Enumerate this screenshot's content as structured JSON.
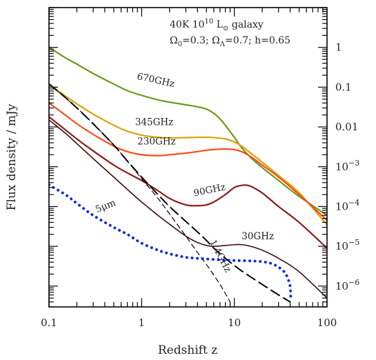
{
  "chart_data": {
    "type": "line",
    "xlabel": "Redshift z",
    "ylabel": "Flux density / mJy",
    "xscale": "log",
    "yscale": "log",
    "xlim": [
      0.1,
      100
    ],
    "ylim": [
      3e-07,
      10
    ],
    "grid": false,
    "legend": "none",
    "x_tick_labels": [
      "0.1",
      "1",
      "10",
      "100"
    ],
    "y_tick_labels": [
      {
        "value": 1,
        "base": "1",
        "exp": ""
      },
      {
        "value": 0.1,
        "base": "0.1",
        "exp": ""
      },
      {
        "value": 0.01,
        "base": "0.01",
        "exp": ""
      },
      {
        "value": 0.001,
        "base": "10",
        "exp": "−3"
      },
      {
        "value": 0.0001,
        "base": "10",
        "exp": "−4"
      },
      {
        "value": 1e-05,
        "base": "10",
        "exp": "−5"
      },
      {
        "value": 1e-06,
        "base": "10",
        "exp": "−6"
      }
    ],
    "annotations": {
      "line1": {
        "prefix": "40K 10",
        "exp": "10",
        "mid": " L",
        "sub": "⊙",
        "suffix": " galaxy"
      },
      "line2": {
        "o": "Ω",
        "osub": "0",
        "oval": "=0.3; ",
        "l": "Ω",
        "lsub": "Λ",
        "lval": "=0.7; h=0.65"
      }
    },
    "series": [
      {
        "name": "670GHz",
        "color": "#6a9a1a",
        "dash": "solid",
        "width": 2.2,
        "label": {
          "x": 0.88,
          "y": 0.16,
          "rotate": 12
        },
        "x": [
          0.1,
          0.15,
          0.2,
          0.3,
          0.5,
          0.7,
          1,
          1.5,
          2,
          3,
          4,
          5,
          6,
          7,
          8,
          10,
          12,
          15,
          20,
          30,
          50,
          100
        ],
        "y": [
          1.0,
          0.55,
          0.38,
          0.22,
          0.12,
          0.082,
          0.062,
          0.048,
          0.042,
          0.036,
          0.032,
          0.028,
          0.022,
          0.016,
          0.011,
          0.0055,
          0.003,
          0.0017,
          0.00095,
          0.00045,
          0.00018,
          6e-05
        ]
      },
      {
        "name": "345GHz",
        "color": "#d8a200",
        "dash": "solid",
        "width": 2.2,
        "label": {
          "x": 0.85,
          "y": 0.011,
          "rotate": 0
        },
        "x": [
          0.1,
          0.15,
          0.2,
          0.3,
          0.5,
          0.7,
          1,
          1.5,
          2,
          3,
          4,
          5,
          6,
          8,
          10,
          12,
          15,
          20,
          30,
          50,
          100
        ],
        "y": [
          0.12,
          0.06,
          0.038,
          0.021,
          0.011,
          0.0078,
          0.0062,
          0.0055,
          0.0053,
          0.0054,
          0.0055,
          0.0055,
          0.0054,
          0.005,
          0.0042,
          0.0033,
          0.0022,
          0.0013,
          0.0006,
          0.00022,
          3.5e-05
        ]
      },
      {
        "name": "230GHz",
        "color": "#ff4a1a",
        "dash": "solid",
        "width": 2.2,
        "label": {
          "x": 0.9,
          "y": 0.0036,
          "rotate": 0
        },
        "x": [
          0.1,
          0.15,
          0.2,
          0.3,
          0.5,
          0.7,
          1,
          1.5,
          2,
          3,
          4,
          5,
          6,
          8,
          10,
          12,
          15,
          20,
          30,
          50,
          100
        ],
        "y": [
          0.04,
          0.02,
          0.012,
          0.0065,
          0.0033,
          0.0024,
          0.002,
          0.0019,
          0.002,
          0.0022,
          0.0024,
          0.0026,
          0.0027,
          0.0028,
          0.0027,
          0.0024,
          0.0018,
          0.0011,
          0.00055,
          0.0002,
          4.5e-05
        ]
      },
      {
        "name": "90GHz",
        "color": "#8a1818",
        "dash": "solid",
        "width": 2.2,
        "label": {
          "x": 3.7,
          "y": 0.00018,
          "rotate": -12
        },
        "x": [
          0.1,
          0.15,
          0.2,
          0.3,
          0.5,
          0.7,
          1,
          1.5,
          2,
          3,
          4,
          5,
          6,
          8,
          10,
          12,
          14,
          16,
          20,
          30,
          50,
          100
        ],
        "y": [
          0.018,
          0.0085,
          0.005,
          0.0025,
          0.0011,
          0.0007,
          0.00045,
          0.00025,
          0.00016,
          0.00011,
          0.000105,
          0.00011,
          0.00013,
          0.0002,
          0.0003,
          0.00034,
          0.00034,
          0.0003,
          0.00022,
          0.0001,
          4e-05,
          9e-06
        ]
      },
      {
        "name": "30GHz",
        "color": "#3a0c0c",
        "dash": "solid",
        "width": 1.6,
        "label": {
          "x": 12,
          "y": 1.5e-05,
          "rotate": 0
        },
        "x": [
          0.1,
          0.15,
          0.2,
          0.3,
          0.5,
          0.7,
          1,
          1.5,
          2,
          3,
          4,
          5,
          6,
          8,
          10,
          12,
          15,
          20,
          30,
          50,
          100
        ],
        "y": [
          0.015,
          0.007,
          0.0038,
          0.0016,
          0.00055,
          0.00027,
          0.00013,
          6e-05,
          3.6e-05,
          1.8e-05,
          1.25e-05,
          1.05e-05,
          1e-05,
          1.05e-05,
          1.1e-05,
          1.1e-05,
          1e-05,
          8e-06,
          5e-06,
          2.3e-06,
          5e-07
        ]
      },
      {
        "name": "1.4GHz",
        "color": "#000000",
        "dash": "long",
        "width": 2.0,
        "label": {
          "x": 5.4,
          "y": 1.3e-05,
          "rotate": 62
        },
        "x": [
          0.1,
          0.15,
          0.2,
          0.3,
          0.5,
          0.7,
          1,
          1.5,
          2,
          3,
          4,
          5,
          6,
          8,
          10,
          12,
          15,
          20,
          30,
          40
        ],
        "y": [
          0.12,
          0.055,
          0.03,
          0.012,
          0.0035,
          0.0014,
          0.00055,
          0.0002,
          0.0001,
          4.2e-05,
          2.3e-05,
          1.4e-05,
          9e-06,
          5e-06,
          3.3e-06,
          2.4e-06,
          1.7e-06,
          1.1e-06,
          6e-07,
          4e-07
        ]
      },
      {
        "name": "",
        "color": "#000000",
        "dash": "short",
        "width": 1.2,
        "label": null,
        "x": [
          0.1,
          0.2,
          0.3,
          0.5,
          0.7,
          1,
          1.5,
          2,
          3,
          4,
          5,
          6,
          7,
          8,
          9
        ],
        "y": [
          0.12,
          0.03,
          0.012,
          0.0035,
          0.0014,
          0.0005,
          0.00016,
          6.5e-05,
          1.8e-05,
          7e-06,
          3.5e-06,
          1.9e-06,
          1.1e-06,
          6.5e-07,
          4e-07
        ]
      },
      {
        "name": "5μm",
        "color": "#0a2ae0",
        "dash": "dot",
        "width": 4.0,
        "label": {
          "x": 0.33,
          "y": 7e-05,
          "rotate": -22
        },
        "x": [
          0.1,
          0.15,
          0.2,
          0.3,
          0.5,
          0.7,
          1,
          1.5,
          2,
          3,
          5,
          8,
          10,
          15,
          20,
          25,
          30,
          35,
          38,
          40,
          40.5,
          40.5
        ],
        "y": [
          0.00035,
          0.0002,
          0.00012,
          6e-05,
          3e-05,
          2e-05,
          1.2e-05,
          8e-06,
          6.5e-06,
          5.3e-06,
          4.8e-06,
          4.5e-06,
          4.4e-06,
          4.3e-06,
          4.1e-06,
          3.7e-06,
          3e-06,
          2.2e-06,
          1.5e-06,
          1e-06,
          6e-07,
          4.2e-07
        ]
      }
    ]
  }
}
